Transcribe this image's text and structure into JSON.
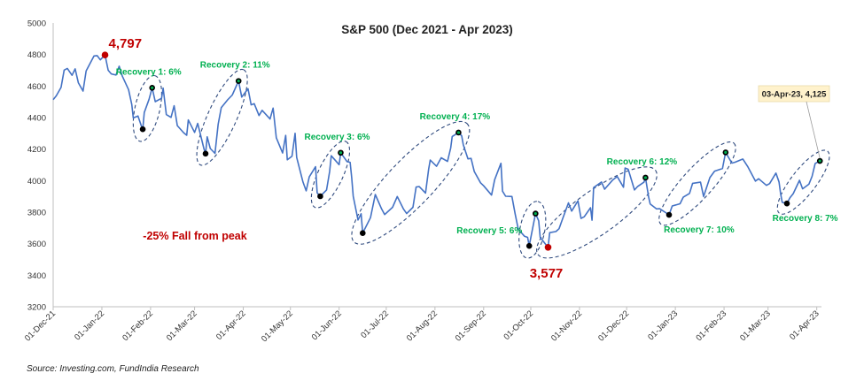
{
  "chart_data": {
    "type": "line",
    "title": "S&P 500 (Dec 2021 - Apr 2023)",
    "ylim": [
      3200,
      5000
    ],
    "yticks": [
      3200,
      3400,
      3600,
      3800,
      4000,
      4200,
      4400,
      4600,
      4800,
      5000
    ],
    "xlim": [
      "2021-12-01",
      "2023-04-04"
    ],
    "xtick_labels": [
      "01-Dec-21",
      "01-Jan-22",
      "01-Feb-22",
      "01-Mar-22",
      "01-Apr-22",
      "01-May-22",
      "01-Jun-22",
      "01-Jul-22",
      "01-Aug-22",
      "01-Sep-22",
      "01-Oct-22",
      "01-Nov-22",
      "01-Dec-22",
      "01-Jan-23",
      "01-Feb-23",
      "01-Mar-23",
      "01-Apr-23"
    ],
    "xtick_dates": [
      "2021-12-01",
      "2022-01-01",
      "2022-02-01",
      "2022-03-01",
      "2022-04-01",
      "2022-05-01",
      "2022-06-01",
      "2022-07-01",
      "2022-08-01",
      "2022-09-01",
      "2022-10-01",
      "2022-11-01",
      "2022-12-01",
      "2023-01-01",
      "2023-02-01",
      "2023-03-01",
      "2023-04-01"
    ],
    "grid": false,
    "line_color": "#4472C4",
    "series": [
      {
        "points": [
          [
            "2021-12-01",
            4513
          ],
          [
            "2021-12-03",
            4538
          ],
          [
            "2021-12-06",
            4591
          ],
          [
            "2021-12-08",
            4701
          ],
          [
            "2021-12-10",
            4712
          ],
          [
            "2021-12-13",
            4668
          ],
          [
            "2021-12-15",
            4709
          ],
          [
            "2021-12-17",
            4621
          ],
          [
            "2021-12-20",
            4568
          ],
          [
            "2021-12-22",
            4696
          ],
          [
            "2021-12-27",
            4791
          ],
          [
            "2021-12-29",
            4793
          ],
          [
            "2021-12-31",
            4766
          ],
          [
            "2022-01-03",
            4797
          ],
          [
            "2022-01-05",
            4700
          ],
          [
            "2022-01-07",
            4677
          ],
          [
            "2022-01-10",
            4670
          ],
          [
            "2022-01-12",
            4726
          ],
          [
            "2022-01-14",
            4663
          ],
          [
            "2022-01-18",
            4577
          ],
          [
            "2022-01-20",
            4483
          ],
          [
            "2022-01-21",
            4398
          ],
          [
            "2022-01-24",
            4410
          ],
          [
            "2022-01-26",
            4350
          ],
          [
            "2022-01-27",
            4326
          ],
          [
            "2022-01-28",
            4432
          ],
          [
            "2022-01-31",
            4516
          ],
          [
            "2022-02-02",
            4589
          ],
          [
            "2022-02-04",
            4501
          ],
          [
            "2022-02-08",
            4522
          ],
          [
            "2022-02-09",
            4587
          ],
          [
            "2022-02-11",
            4419
          ],
          [
            "2022-02-14",
            4401
          ],
          [
            "2022-02-16",
            4475
          ],
          [
            "2022-02-18",
            4349
          ],
          [
            "2022-02-22",
            4304
          ],
          [
            "2022-02-24",
            4288
          ],
          [
            "2022-02-25",
            4385
          ],
          [
            "2022-03-01",
            4306
          ],
          [
            "2022-03-03",
            4363
          ],
          [
            "2022-03-07",
            4201
          ],
          [
            "2022-03-08",
            4171
          ],
          [
            "2022-03-09",
            4278
          ],
          [
            "2022-03-11",
            4204
          ],
          [
            "2022-03-14",
            4173
          ],
          [
            "2022-03-16",
            4358
          ],
          [
            "2022-03-18",
            4463
          ],
          [
            "2022-03-22",
            4512
          ],
          [
            "2022-03-25",
            4543
          ],
          [
            "2022-03-29",
            4632
          ],
          [
            "2022-03-31",
            4530
          ],
          [
            "2022-04-04",
            4583
          ],
          [
            "2022-04-06",
            4481
          ],
          [
            "2022-04-08",
            4488
          ],
          [
            "2022-04-11",
            4413
          ],
          [
            "2022-04-13",
            4446
          ],
          [
            "2022-04-18",
            4391
          ],
          [
            "2022-04-20",
            4460
          ],
          [
            "2022-04-22",
            4272
          ],
          [
            "2022-04-26",
            4175
          ],
          [
            "2022-04-28",
            4287
          ],
          [
            "2022-04-29",
            4132
          ],
          [
            "2022-05-02",
            4155
          ],
          [
            "2022-05-04",
            4300
          ],
          [
            "2022-05-05",
            4147
          ],
          [
            "2022-05-09",
            3991
          ],
          [
            "2022-05-11",
            3935
          ],
          [
            "2022-05-13",
            4024
          ],
          [
            "2022-05-17",
            4088
          ],
          [
            "2022-05-18",
            3923
          ],
          [
            "2022-05-20",
            3901
          ],
          [
            "2022-05-24",
            3941
          ],
          [
            "2022-05-26",
            4058
          ],
          [
            "2022-05-27",
            4158
          ],
          [
            "2022-06-01",
            4101
          ],
          [
            "2022-06-02",
            4177
          ],
          [
            "2022-06-06",
            4121
          ],
          [
            "2022-06-08",
            4116
          ],
          [
            "2022-06-09",
            4018
          ],
          [
            "2022-06-10",
            3901
          ],
          [
            "2022-06-13",
            3750
          ],
          [
            "2022-06-15",
            3790
          ],
          [
            "2022-06-16",
            3667
          ],
          [
            "2022-06-21",
            3765
          ],
          [
            "2022-06-24",
            3912
          ],
          [
            "2022-06-28",
            3821
          ],
          [
            "2022-06-30",
            3785
          ],
          [
            "2022-07-05",
            3831
          ],
          [
            "2022-07-08",
            3899
          ],
          [
            "2022-07-12",
            3819
          ],
          [
            "2022-07-14",
            3791
          ],
          [
            "2022-07-18",
            3831
          ],
          [
            "2022-07-20",
            3960
          ],
          [
            "2022-07-22",
            3962
          ],
          [
            "2022-07-26",
            3921
          ],
          [
            "2022-07-28",
            4072
          ],
          [
            "2022-07-29",
            4130
          ],
          [
            "2022-08-02",
            4091
          ],
          [
            "2022-08-05",
            4145
          ],
          [
            "2022-08-09",
            4122
          ],
          [
            "2022-08-11",
            4207
          ],
          [
            "2022-08-12",
            4280
          ],
          [
            "2022-08-16",
            4305
          ],
          [
            "2022-08-18",
            4284
          ],
          [
            "2022-08-19",
            4228
          ],
          [
            "2022-08-22",
            4138
          ],
          [
            "2022-08-24",
            4141
          ],
          [
            "2022-08-26",
            4058
          ],
          [
            "2022-08-30",
            3986
          ],
          [
            "2022-09-01",
            3967
          ],
          [
            "2022-09-06",
            3908
          ],
          [
            "2022-09-08",
            4006
          ],
          [
            "2022-09-12",
            4110
          ],
          [
            "2022-09-13",
            3933
          ],
          [
            "2022-09-15",
            3901
          ],
          [
            "2022-09-19",
            3899
          ],
          [
            "2022-09-21",
            3790
          ],
          [
            "2022-09-23",
            3693
          ],
          [
            "2022-09-27",
            3647
          ],
          [
            "2022-09-29",
            3640
          ],
          [
            "2022-09-30",
            3586
          ],
          [
            "2022-10-04",
            3791
          ],
          [
            "2022-10-06",
            3745
          ],
          [
            "2022-10-07",
            3640
          ],
          [
            "2022-10-11",
            3589
          ],
          [
            "2022-10-12",
            3577
          ],
          [
            "2022-10-13",
            3670
          ],
          [
            "2022-10-17",
            3677
          ],
          [
            "2022-10-19",
            3695
          ],
          [
            "2022-10-21",
            3752
          ],
          [
            "2022-10-25",
            3859
          ],
          [
            "2022-10-27",
            3807
          ],
          [
            "2022-10-31",
            3872
          ],
          [
            "2022-11-02",
            3760
          ],
          [
            "2022-11-04",
            3771
          ],
          [
            "2022-11-08",
            3828
          ],
          [
            "2022-11-09",
            3749
          ],
          [
            "2022-11-10",
            3956
          ],
          [
            "2022-11-15",
            3991
          ],
          [
            "2022-11-17",
            3946
          ],
          [
            "2022-11-22",
            4003
          ],
          [
            "2022-11-25",
            4026
          ],
          [
            "2022-11-29",
            3958
          ],
          [
            "2022-11-30",
            4080
          ],
          [
            "2022-12-02",
            4072
          ],
          [
            "2022-12-06",
            3941
          ],
          [
            "2022-12-08",
            3963
          ],
          [
            "2022-12-12",
            3990
          ],
          [
            "2022-12-13",
            4019
          ],
          [
            "2022-12-15",
            3895
          ],
          [
            "2022-12-16",
            3852
          ],
          [
            "2022-12-20",
            3821
          ],
          [
            "2022-12-22",
            3822
          ],
          [
            "2022-12-28",
            3783
          ],
          [
            "2022-12-30",
            3839
          ],
          [
            "2023-01-04",
            3853
          ],
          [
            "2023-01-06",
            3895
          ],
          [
            "2023-01-10",
            3919
          ],
          [
            "2023-01-12",
            3983
          ],
          [
            "2023-01-17",
            3990
          ],
          [
            "2023-01-19",
            3899
          ],
          [
            "2023-01-23",
            4019
          ],
          [
            "2023-01-26",
            4060
          ],
          [
            "2023-01-31",
            4077
          ],
          [
            "2023-02-02",
            4179
          ],
          [
            "2023-02-06",
            4111
          ],
          [
            "2023-02-08",
            4117
          ],
          [
            "2023-02-13",
            4137
          ],
          [
            "2023-02-16",
            4090
          ],
          [
            "2023-02-21",
            3997
          ],
          [
            "2023-02-23",
            4012
          ],
          [
            "2023-02-28",
            3970
          ],
          [
            "2023-03-02",
            3981
          ],
          [
            "2023-03-06",
            4048
          ],
          [
            "2023-03-08",
            3992
          ],
          [
            "2023-03-09",
            3918
          ],
          [
            "2023-03-10",
            3862
          ],
          [
            "2023-03-13",
            3855
          ],
          [
            "2023-03-15",
            3892
          ],
          [
            "2023-03-17",
            3917
          ],
          [
            "2023-03-21",
            4002
          ],
          [
            "2023-03-23",
            3948
          ],
          [
            "2023-03-27",
            3977
          ],
          [
            "2023-03-29",
            4027
          ],
          [
            "2023-03-31",
            4109
          ],
          [
            "2023-04-03",
            4125
          ]
        ]
      }
    ],
    "peak": {
      "date": "2022-01-03",
      "value": 4797,
      "label": "4,797",
      "color": "#C00000"
    },
    "trough": {
      "date": "2022-10-12",
      "value": 3577,
      "label": "3,577",
      "color": "#C00000"
    },
    "fall_label": "-25% Fall from peak",
    "callout": {
      "date": "2023-04-03",
      "value": 4125,
      "label": "03-Apr-23, 4,125"
    },
    "recoveries": [
      {
        "label": "Recovery 1: 6%",
        "start": [
          "2022-01-27",
          4326
        ],
        "end": [
          "2022-02-02",
          4589
        ],
        "label_pos": "above"
      },
      {
        "label": "Recovery 2: 11%",
        "start": [
          "2022-03-08",
          4171
        ],
        "end": [
          "2022-03-29",
          4632
        ],
        "label_pos": "above"
      },
      {
        "label": "Recovery 3: 6%",
        "start": [
          "2022-05-20",
          3901
        ],
        "end": [
          "2022-06-02",
          4177
        ],
        "label_pos": "above"
      },
      {
        "label": "Recovery 4: 17%",
        "start": [
          "2022-06-16",
          3667
        ],
        "end": [
          "2022-08-16",
          4305
        ],
        "label_pos": "above"
      },
      {
        "label": "Recovery 5: 6%",
        "start": [
          "2022-09-30",
          3586
        ],
        "end": [
          "2022-10-04",
          3791
        ],
        "label_pos": "left"
      },
      {
        "label": "Recovery 6: 12%",
        "start": [
          "2022-10-12",
          3577
        ],
        "end": [
          "2022-12-13",
          4019
        ],
        "label_pos": "above"
      },
      {
        "label": "Recovery 7: 10%",
        "start": [
          "2022-12-28",
          3783
        ],
        "end": [
          "2023-02-02",
          4179
        ],
        "label_pos": "below"
      },
      {
        "label": "Recovery 8: 7%",
        "start": [
          "2023-03-13",
          3855
        ],
        "end": [
          "2023-04-03",
          4125
        ],
        "label_pos": "below"
      }
    ],
    "recovery_label_color": "#00B050",
    "ellipse_color": "#2F4A7E"
  },
  "source": "Source: Investing.com, FundIndia Research"
}
